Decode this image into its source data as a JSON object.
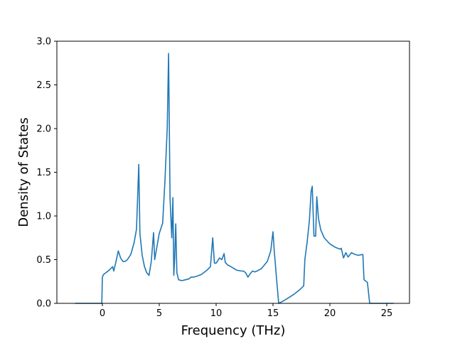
{
  "chart_data": {
    "type": "line",
    "title": "",
    "xlabel": "Frequency (THz)",
    "ylabel": "Density of States",
    "xlim": [
      -4,
      27
    ],
    "ylim": [
      0,
      3.0
    ],
    "grid": false,
    "line_color": "#1f77b4",
    "x_ticks": [
      0,
      5,
      10,
      15,
      20,
      25
    ],
    "x_tick_labels": [
      "0",
      "5",
      "10",
      "15",
      "20",
      "25"
    ],
    "y_ticks": [
      0.0,
      0.5,
      1.0,
      1.5,
      2.0,
      2.5,
      3.0
    ],
    "y_tick_labels": [
      "0.0",
      "0.5",
      "1.0",
      "1.5",
      "2.0",
      "2.5",
      "3.0"
    ],
    "series": [
      {
        "x": [
          -2.4,
          -0.05,
          0.0,
          0.1,
          0.3,
          0.6,
          0.9,
          1.0,
          1.2,
          1.4,
          1.6,
          1.8,
          2.0,
          2.2,
          2.5,
          2.8,
          3.0,
          3.2,
          3.3,
          3.5,
          3.7,
          3.9,
          4.1,
          4.3,
          4.5,
          4.6,
          4.8,
          5.0,
          5.3,
          5.5,
          5.7,
          5.82,
          5.95,
          6.1,
          6.2,
          6.28,
          6.35,
          6.45,
          6.55,
          6.7,
          7.0,
          7.3,
          7.6,
          7.8,
          8.0,
          8.3,
          8.7,
          9.2,
          9.5,
          9.7,
          9.85,
          10.0,
          10.3,
          10.5,
          10.7,
          10.8,
          11.0,
          11.3,
          11.8,
          12.2,
          12.4,
          12.6,
          12.8,
          13.0,
          13.2,
          13.4,
          13.6,
          14.0,
          14.5,
          14.8,
          15.0,
          15.1,
          15.3,
          15.5,
          15.8,
          16.2,
          16.8,
          17.3,
          17.7,
          17.8,
          18.0,
          18.2,
          18.35,
          18.45,
          18.6,
          18.75,
          18.85,
          19.0,
          19.2,
          19.5,
          20.0,
          20.5,
          20.9,
          21.0,
          21.2,
          21.4,
          21.6,
          21.9,
          22.2,
          22.5,
          22.9,
          23.0,
          23.3,
          23.5,
          25.6
        ],
        "y": [
          0.0,
          0.0,
          0.3,
          0.33,
          0.35,
          0.38,
          0.42,
          0.37,
          0.48,
          0.6,
          0.52,
          0.48,
          0.48,
          0.5,
          0.56,
          0.7,
          0.85,
          1.59,
          0.8,
          0.55,
          0.42,
          0.35,
          0.32,
          0.48,
          0.81,
          0.5,
          0.65,
          0.8,
          0.92,
          1.4,
          2.0,
          2.86,
          1.2,
          0.75,
          1.21,
          0.32,
          0.5,
          0.91,
          0.35,
          0.27,
          0.26,
          0.27,
          0.28,
          0.3,
          0.3,
          0.31,
          0.33,
          0.38,
          0.42,
          0.75,
          0.46,
          0.46,
          0.52,
          0.5,
          0.57,
          0.47,
          0.44,
          0.42,
          0.38,
          0.37,
          0.37,
          0.35,
          0.3,
          0.34,
          0.37,
          0.36,
          0.37,
          0.4,
          0.48,
          0.6,
          0.82,
          0.62,
          0.3,
          0.0,
          0.02,
          0.05,
          0.1,
          0.15,
          0.2,
          0.5,
          0.7,
          0.95,
          1.28,
          1.34,
          0.77,
          0.77,
          1.22,
          0.97,
          0.84,
          0.75,
          0.68,
          0.64,
          0.62,
          0.63,
          0.52,
          0.58,
          0.53,
          0.58,
          0.56,
          0.55,
          0.56,
          0.27,
          0.24,
          0.0,
          0.0
        ]
      }
    ]
  }
}
